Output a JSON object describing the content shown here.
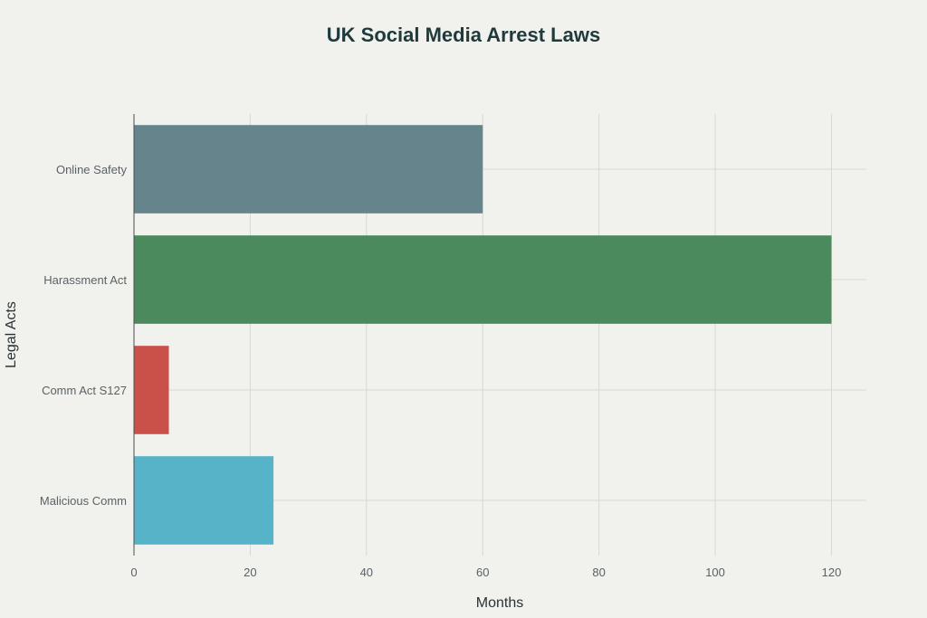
{
  "chart_data": {
    "type": "bar",
    "orientation": "horizontal",
    "title": "UK Social Media Arrest Laws",
    "xlabel": "Months",
    "ylabel": "Legal Acts",
    "categories": [
      "Online Safety",
      "Harassment Act",
      "Comm Act S127",
      "Malicious Comm"
    ],
    "values": [
      60,
      120,
      6,
      24
    ],
    "colors": [
      "#65848b",
      "#4a8a5c",
      "#c9514a",
      "#56b3c8"
    ],
    "xlim": [
      0,
      126
    ],
    "x_ticks": [
      0,
      20,
      40,
      60,
      80,
      100,
      120
    ],
    "grid": true,
    "legend": "none"
  }
}
